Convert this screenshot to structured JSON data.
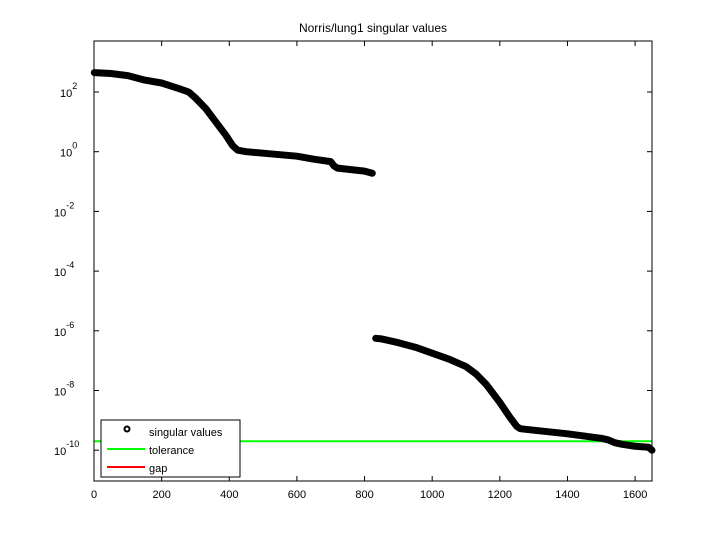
{
  "chart_data": {
    "type": "scatter",
    "title": "Norris/lung1 singular values",
    "xlabel": "",
    "ylabel": "",
    "xlim": [
      0,
      1650
    ],
    "ylim_log10": [
      -11,
      3.7
    ],
    "yscale": "log",
    "x_ticks": [
      0,
      200,
      400,
      600,
      800,
      1000,
      1200,
      1400,
      1600
    ],
    "x_tick_labels": [
      "0",
      "200",
      "400",
      "600",
      "800",
      "1000",
      "1200",
      "1400",
      "1600"
    ],
    "y_ticks_exp": [
      2,
      0,
      -2,
      -4,
      -6,
      -8,
      -10
    ],
    "y_tick_labels": [
      "10^2",
      "10^0",
      "10^-2",
      "10^-4",
      "10^-6",
      "10^-8",
      "10^-10"
    ],
    "grid": false,
    "legend_position": "lower left",
    "legend": [
      "singular values",
      "tolerance",
      "gap"
    ],
    "series": [
      {
        "name": "singular values",
        "marker": "o",
        "color": "#000000",
        "segments": [
          {
            "x": [
              1,
              50,
              100,
              150,
              200,
              250,
              280,
              300,
              330,
              360,
              390,
              410,
              425,
              450,
              500,
              550,
              600,
              650,
              700,
              710,
              720,
              760,
              800,
              823
            ],
            "log10_y": [
              2.65,
              2.62,
              2.55,
              2.4,
              2.3,
              2.12,
              2.0,
              1.8,
              1.45,
              1.0,
              0.55,
              0.2,
              0.05,
              0.0,
              -0.05,
              -0.1,
              -0.15,
              -0.25,
              -0.33,
              -0.48,
              -0.55,
              -0.6,
              -0.65,
              -0.72
            ]
          },
          {
            "x": [
              833,
              850,
              900,
              950,
              1000,
              1050,
              1100,
              1130,
              1160,
              1200,
              1230,
              1250,
              1260,
              1300,
              1400,
              1500,
              1520,
              1540,
              1560,
              1600,
              1640,
              1650
            ],
            "log10_y": [
              -6.25,
              -6.27,
              -6.4,
              -6.55,
              -6.75,
              -6.95,
              -7.2,
              -7.45,
              -7.8,
              -8.4,
              -8.9,
              -9.2,
              -9.28,
              -9.33,
              -9.45,
              -9.6,
              -9.65,
              -9.75,
              -9.8,
              -9.87,
              -9.9,
              -10.0
            ]
          }
        ]
      },
      {
        "name": "tolerance",
        "color": "#00ff00",
        "log10_y": -9.7,
        "type": "hline"
      },
      {
        "name": "gap",
        "color": "#ff0000",
        "type": "none"
      }
    ]
  }
}
